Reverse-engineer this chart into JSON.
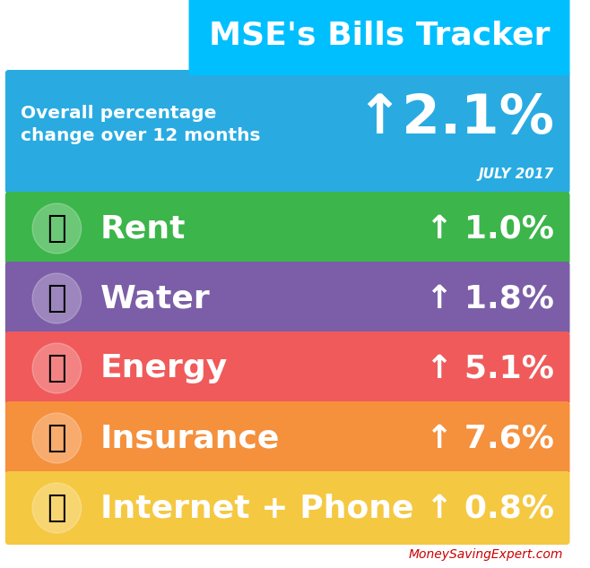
{
  "title": "MSE's Bills Tracker",
  "title_bg": "#00bfff",
  "title_color": "#ffffff",
  "header_bg": "#29abe2",
  "header_text": "Overall percentage\nchange over 12 months",
  "header_value": "↑2.1%",
  "header_sub": "JULY 2017",
  "rows": [
    {
      "label": "Rent",
      "value": "↑ 1.0%",
      "icon": "🏠",
      "bg": "#3cb54a"
    },
    {
      "label": "Water",
      "value": "↑ 1.8%",
      "icon": "💧",
      "bg": "#7b5ea7"
    },
    {
      "label": "Energy",
      "value": "↑ 5.1%",
      "icon": "💡",
      "bg": "#f05a5a"
    },
    {
      "label": "Insurance",
      "value": "↑ 7.6%",
      "icon": "🔒",
      "bg": "#f5903d"
    },
    {
      "label": "Internet + Phone",
      "value": "↑ 0.8%",
      "icon": "📱",
      "bg": "#f5c842"
    }
  ],
  "footer_text": "MoneySavingExpert.com",
  "footer_color": "#cc0000",
  "bg_color": "#ffffff"
}
